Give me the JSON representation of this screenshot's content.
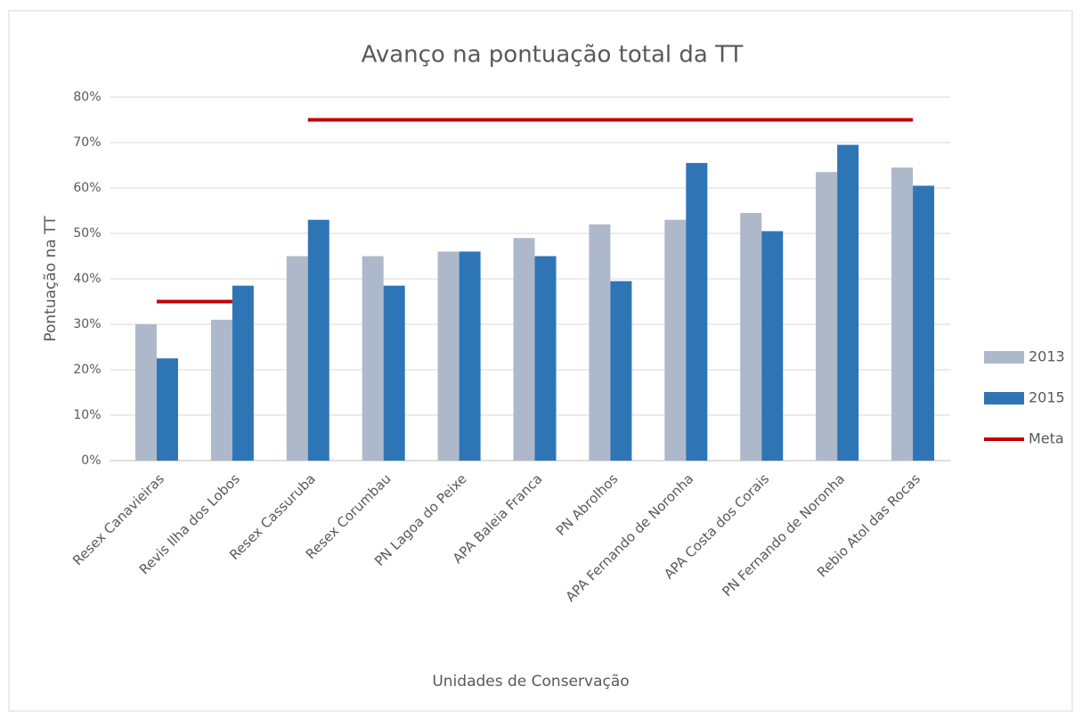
{
  "chart_data": {
    "type": "bar",
    "title": "Avanço na pontuação total da TT",
    "x_label": "Unidades de Conservação",
    "y_label": "Pontuação na TT",
    "categories": [
      "Resex Canavieiras",
      "Revis Ilha dos Lobos",
      "Resex Cassuruba",
      "Resex Corumbau",
      "PN Lagoa do Peixe",
      "APA Baleia Franca",
      "PN Abrolhos",
      "APA Fernando de Noronha",
      "APA Costa dos Corais",
      "PN Fernando de Noronha",
      "Rebio Atol das Rocas"
    ],
    "series": [
      {
        "name": "2013",
        "color": "#adb9ca",
        "values": [
          30,
          31,
          45,
          45,
          46,
          49,
          52,
          53,
          54.5,
          63.5,
          64.5
        ]
      },
      {
        "name": "2015",
        "color": "#2e75b6",
        "values": [
          22.5,
          38.5,
          53,
          38.5,
          46,
          45,
          39.5,
          65.5,
          50.5,
          69.5,
          60.5
        ]
      },
      {
        "name": "Meta",
        "type": "line",
        "color": "#c00000",
        "values": [
          35,
          35,
          75,
          75,
          75,
          75,
          75,
          75,
          75,
          75,
          75
        ]
      }
    ],
    "ylim": [
      0,
      80
    ],
    "yticks": [
      {
        "value": 0,
        "label": "0%"
      },
      {
        "value": 10,
        "label": "10%"
      },
      {
        "value": 20,
        "label": "20%"
      },
      {
        "value": 30,
        "label": "30%"
      },
      {
        "value": 40,
        "label": "40%"
      },
      {
        "value": 50,
        "label": "50%"
      },
      {
        "value": 60,
        "label": "60%"
      },
      {
        "value": 70,
        "label": "70%"
      },
      {
        "value": 80,
        "label": "80%"
      }
    ],
    "grid": true,
    "legend": "right"
  }
}
